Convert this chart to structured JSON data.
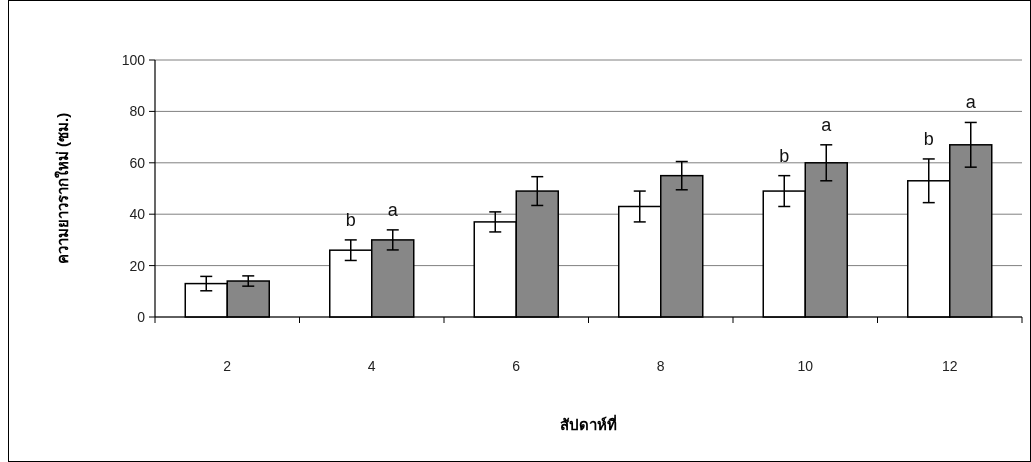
{
  "chart_data": {
    "type": "bar",
    "xlabel": "สัปดาห์ที่",
    "ylabel": "ความยาวรากใหม่ (ซม.)",
    "categories": [
      "2",
      "4",
      "6",
      "8",
      "10",
      "12"
    ],
    "series": [
      {
        "color": "#ffffff",
        "values": [
          13,
          26,
          37,
          43,
          49,
          53
        ],
        "errors": [
          2.8,
          4,
          3.9,
          6,
          6,
          8.5
        ]
      },
      {
        "color": "#878787",
        "values": [
          14,
          30,
          49,
          55,
          60,
          67
        ],
        "errors": [
          2,
          3.9,
          5.6,
          5.5,
          7,
          8.7
        ]
      }
    ],
    "ylim": [
      0,
      100
    ],
    "yticks": [
      0,
      20,
      40,
      60,
      80,
      100
    ],
    "grid": "y",
    "annotations": [
      "b",
      "a",
      "b",
      "a",
      "b",
      "a"
    ]
  }
}
